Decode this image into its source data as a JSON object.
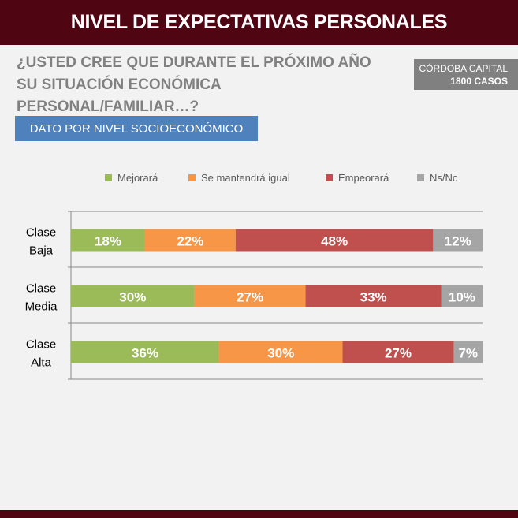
{
  "header": {
    "title": "NIVEL DE EXPECTATIVAS PERSONALES"
  },
  "question": "¿USTED CREE QUE DURANTE EL PRÓXIMO AÑO SU SITUACIÓN ECONÓMICA PERSONAL/FAMILIAR…?",
  "badge": {
    "line1": "CÓRDOBA CAPITAL",
    "line2": "1800 CASOS"
  },
  "tag": "DATO POR NIVEL SOCIOECONÓMICO",
  "chart_data": {
    "type": "bar",
    "orientation": "horizontal",
    "stacked": true,
    "categories": [
      [
        "Clase",
        "Baja"
      ],
      [
        "Clase",
        "Media"
      ],
      [
        "Clase",
        "Alta"
      ]
    ],
    "series": [
      {
        "name": "Mejorará",
        "color": "#9bbb59",
        "values": [
          18,
          30,
          36
        ]
      },
      {
        "name": "Se mantendrá igual",
        "color": "#f79646",
        "values": [
          22,
          27,
          30
        ]
      },
      {
        "name": "Empeorará",
        "color": "#c0504d",
        "values": [
          48,
          33,
          27
        ]
      },
      {
        "name": "Ns/Nc",
        "color": "#a5a5a5",
        "values": [
          12,
          10,
          7
        ]
      }
    ],
    "value_suffix": "%",
    "xlim": [
      0,
      100
    ],
    "legend": "top",
    "grid": true
  }
}
